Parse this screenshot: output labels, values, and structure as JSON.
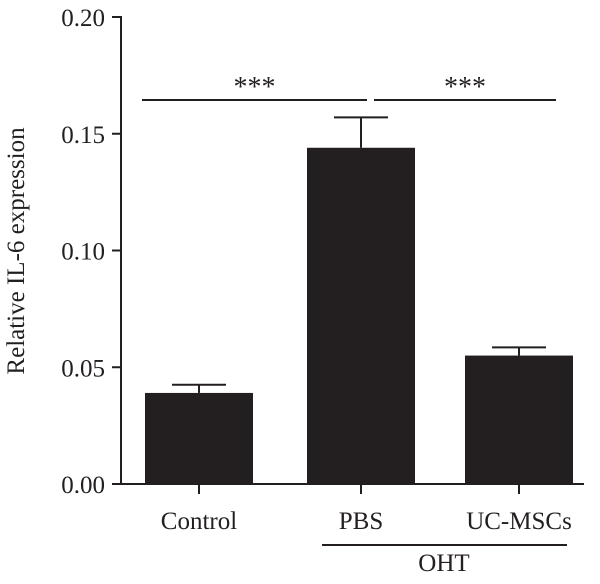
{
  "chart_data": {
    "type": "bar",
    "title": "",
    "xlabel": "",
    "ylabel": "Relative IL-6 expression",
    "ylim": [
      0,
      0.2
    ],
    "yticks": [
      0.0,
      0.05,
      0.1,
      0.15,
      0.2
    ],
    "ytick_labels": [
      "0.00",
      "0.05",
      "0.10",
      "0.15",
      "0.20"
    ],
    "categories": [
      "Control",
      "PBS",
      "UC-MSCs"
    ],
    "values": [
      0.039,
      0.144,
      0.055
    ],
    "errors": [
      0.0035,
      0.013,
      0.0035
    ],
    "bar_color": "#231f20",
    "group_label": {
      "text": "OHT",
      "categories": [
        "PBS",
        "UC-MSCs"
      ]
    },
    "significance": [
      {
        "from": "Control",
        "to": "PBS",
        "label": "***"
      },
      {
        "from": "PBS",
        "to": "UC-MSCs",
        "label": "***"
      }
    ],
    "grid": false,
    "legend": "none"
  }
}
